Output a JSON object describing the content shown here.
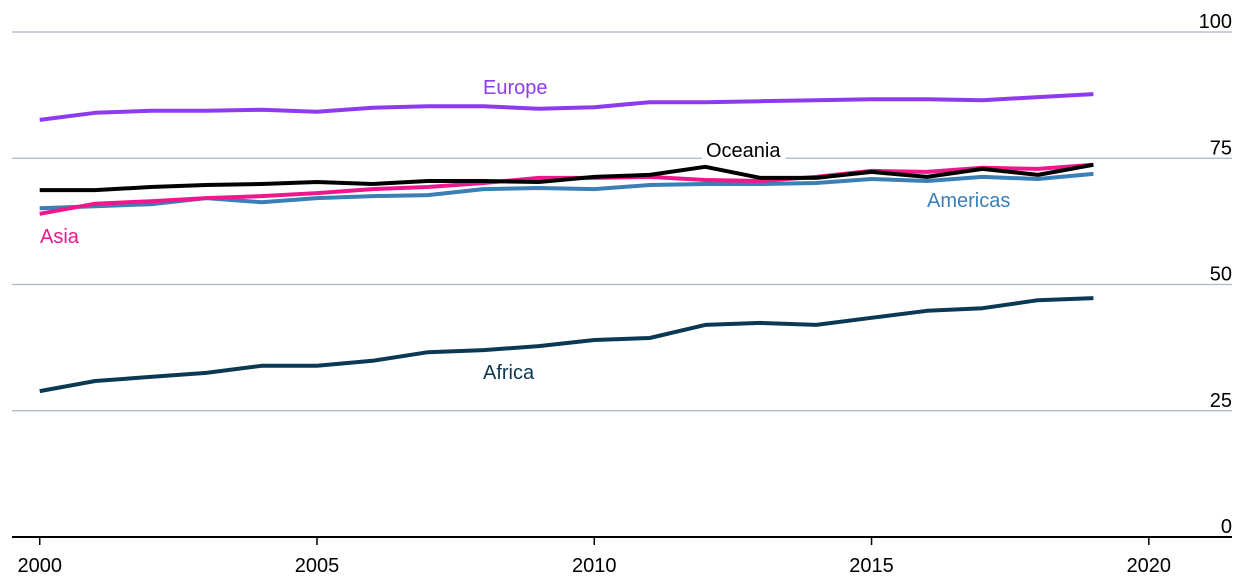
{
  "chart_data": {
    "type": "line",
    "x": [
      2000,
      2001,
      2002,
      2003,
      2004,
      2005,
      2006,
      2007,
      2008,
      2009,
      2010,
      2011,
      2012,
      2013,
      2014,
      2015,
      2016,
      2017,
      2018,
      2019
    ],
    "series": [
      {
        "name": "Africa",
        "color": "#0b3954",
        "values": [
          28.9,
          30.9,
          31.7,
          32.5,
          33.9,
          33.9,
          34.9,
          36.6,
          37.0,
          37.8,
          39.0,
          39.4,
          42.0,
          42.4,
          42.0,
          43.4,
          44.8,
          45.3,
          46.9,
          47.3
        ]
      },
      {
        "name": "Americas",
        "color": "#3a7fb5",
        "values": [
          65.1,
          65.5,
          65.9,
          67.1,
          66.3,
          67.1,
          67.5,
          67.7,
          68.9,
          69.1,
          68.9,
          69.7,
          69.9,
          69.9,
          70.1,
          70.9,
          70.5,
          71.3,
          70.9,
          71.9
        ]
      },
      {
        "name": "Asia",
        "color": "#f0168c",
        "values": [
          64.0,
          66.0,
          66.5,
          67.1,
          67.5,
          68.1,
          68.9,
          69.3,
          70.1,
          71.1,
          71.1,
          71.3,
          70.7,
          70.5,
          71.3,
          72.5,
          72.3,
          73.1,
          72.9,
          73.7
        ]
      },
      {
        "name": "Oceania",
        "color": "#000000",
        "values": [
          68.7,
          68.7,
          69.3,
          69.7,
          69.9,
          70.3,
          69.9,
          70.5,
          70.5,
          70.3,
          71.3,
          71.7,
          73.3,
          71.1,
          71.1,
          72.3,
          71.3,
          72.9,
          71.7,
          73.7
        ]
      },
      {
        "name": "Europe",
        "color": "#8e3bf0",
        "values": [
          82.6,
          84.0,
          84.4,
          84.4,
          84.6,
          84.2,
          85.0,
          85.3,
          85.3,
          84.8,
          85.1,
          86.1,
          86.1,
          86.3,
          86.5,
          86.7,
          86.7,
          86.5,
          87.1,
          87.7
        ]
      }
    ],
    "xlim": [
      1999.5,
      2021.5
    ],
    "xticks": [
      2000,
      2005,
      2010,
      2015,
      2020
    ],
    "ylim": [
      0,
      100
    ],
    "yticks": [
      0,
      25,
      50,
      75,
      100
    ],
    "grid": true
  }
}
